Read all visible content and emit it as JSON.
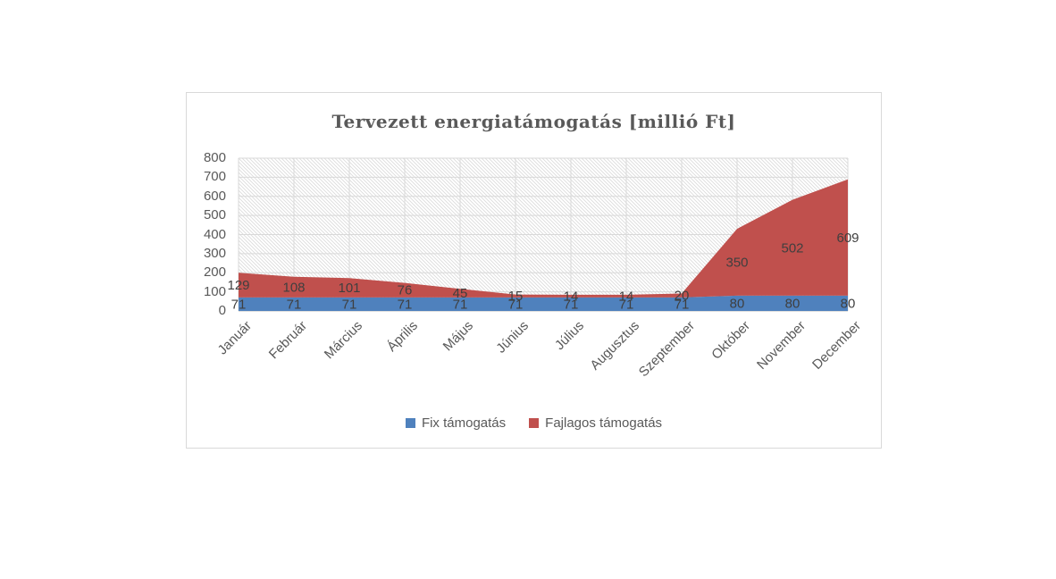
{
  "chart_data": {
    "type": "area",
    "stacked": true,
    "title": "Tervezett energiatámogatás [millió Ft]",
    "categories": [
      "Január",
      "Február",
      "Március",
      "Április",
      "Május",
      "Június",
      "Július",
      "Augusztus",
      "Szeptember",
      "Október",
      "November",
      "December"
    ],
    "series": [
      {
        "name": "Fix támogatás",
        "color": "#4F81BD",
        "values": [
          71,
          71,
          71,
          71,
          71,
          71,
          71,
          71,
          71,
          80,
          80,
          80
        ]
      },
      {
        "name": "Fajlagos támogatás",
        "color": "#C0504D",
        "values": [
          129,
          108,
          101,
          76,
          45,
          15,
          14,
          14,
          20,
          350,
          502,
          609
        ]
      }
    ],
    "y_axis": {
      "min": 0,
      "max": 800,
      "step": 100,
      "ticks": [
        "800",
        "700",
        "600",
        "500",
        "400",
        "300",
        "200",
        "100",
        "0"
      ]
    },
    "data_labels": true,
    "legend_position": "bottom",
    "grid": true,
    "plot_pattern": "diagonal-hatch"
  },
  "colors": {
    "panel_border": "#d9d9d9",
    "grid_line": "#d9d9d9",
    "hatch_line": "#dcdcdc",
    "axis_line": "#bfbfbf",
    "axis_text": "#595959",
    "title_text": "#595959",
    "data_label_text": "#3f3f3f"
  }
}
